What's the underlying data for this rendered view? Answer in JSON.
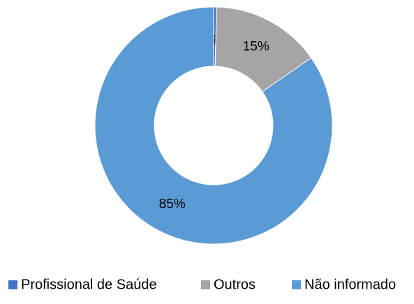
{
  "chart_data": {
    "type": "donut",
    "categories": [
      "Profissional de Saúde",
      "Outros",
      "Não informado"
    ],
    "values": [
      0.4,
      15,
      85
    ],
    "value_labels": [
      "0%",
      "15%",
      "85%"
    ],
    "colors": [
      "#4472c4",
      "#a5a5a5",
      "#5b9bd5"
    ],
    "legend": "bottom"
  }
}
